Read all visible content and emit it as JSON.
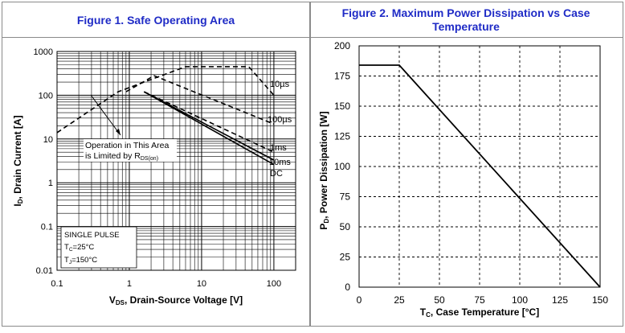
{
  "figures": [
    {
      "title": "Figure 1. Safe Operating Area",
      "color": "#1f2bc6"
    },
    {
      "title_line1": "Figure 2. Maximum Power Dissipation vs Case",
      "title_line2": "Temperature",
      "color": "#1f2bc6"
    }
  ],
  "chart_data": [
    {
      "type": "line",
      "scale": "log-log",
      "title": "Figure 1. Safe Operating Area",
      "xlabel": "VDS, Drain-Source Voltage [V]",
      "xlabel_parts": {
        "v": "V",
        "sub": "DS",
        "rest": ", Drain-Source Voltage [V]"
      },
      "ylabel": "ID, Drain Current [A]",
      "ylabel_parts": {
        "i": "I",
        "sub": "D",
        "rest": ", Drain Current [A]"
      },
      "xlim": [
        0.1,
        200
      ],
      "ylim": [
        0.01,
        1000
      ],
      "x_ticks": [
        0.1,
        1,
        10,
        100
      ],
      "x_tick_labels": [
        "0.1",
        "1",
        "10",
        "100"
      ],
      "y_ticks": [
        0.01,
        0.1,
        1,
        10,
        100,
        1000
      ],
      "y_tick_labels": [
        "0.01",
        "0.1",
        "1",
        "10",
        "100",
        "1000"
      ],
      "series": [
        {
          "name": "10µs",
          "style": "dashed",
          "x": [
            0.1,
            0.7,
            6,
            45,
            100
          ],
          "y": [
            14,
            120,
            450,
            450,
            100
          ]
        },
        {
          "name": "100µs",
          "style": "dashed",
          "x": [
            0.9,
            2.2,
            100
          ],
          "y": [
            120,
            280,
            22
          ]
        },
        {
          "name": "1ms",
          "style": "dashed",
          "x": [
            1.6,
            100
          ],
          "y": [
            120,
            5
          ]
        },
        {
          "name": "10ms",
          "style": "solid",
          "x": [
            1.6,
            100
          ],
          "y": [
            120,
            3.3
          ]
        },
        {
          "name": "DC",
          "style": "solid",
          "x": [
            1.6,
            100
          ],
          "y": [
            120,
            2.6
          ]
        }
      ],
      "curve_labels": [
        {
          "text": "10µs",
          "series": "10µs"
        },
        {
          "text": "100µs",
          "series": "100µs"
        },
        {
          "text": "1ms",
          "series": "1ms"
        },
        {
          "text": "10ms",
          "series": "10ms"
        },
        {
          "text": "DC",
          "series": "DC"
        }
      ],
      "annotations": {
        "rds_line1": "Operation in This Area",
        "rds_line2_a": "is Limited by R",
        "rds_line2_sub": "DS(on)",
        "pulse": "SINGLE PULSE",
        "tc_main": "T",
        "tc_sub": "C",
        "tc_rest": "=25°C",
        "tj_main": "T",
        "tj_sub": "J",
        "tj_rest": "=150°C"
      }
    },
    {
      "type": "line",
      "title": "Figure 2. Maximum Power Dissipation vs Case Temperature",
      "xlabel": "TC, Case Temperature [°C]",
      "xlabel_parts": {
        "t": "T",
        "sub": "C",
        "rest": ", Case Temperature [°C]"
      },
      "ylabel": "PD, Power Dissipation [W]",
      "ylabel_parts": {
        "p": "P",
        "sub": "D",
        "rest": ", Power Dissipation [W]"
      },
      "xlim": [
        0,
        150
      ],
      "ylim": [
        0,
        200
      ],
      "x_ticks": [
        0,
        25,
        50,
        75,
        100,
        125,
        150
      ],
      "x_tick_labels": [
        "0",
        "25",
        "50",
        "75",
        "100",
        "125",
        "150"
      ],
      "y_ticks": [
        0,
        25,
        50,
        75,
        100,
        125,
        150,
        175,
        200
      ],
      "y_tick_labels": [
        "0",
        "25",
        "50",
        "75",
        "100",
        "125",
        "150",
        "175",
        "200"
      ],
      "grid": "dashed",
      "series": [
        {
          "name": "PD",
          "x": [
            0,
            25,
            150
          ],
          "y": [
            184,
            184,
            0
          ]
        }
      ]
    }
  ]
}
